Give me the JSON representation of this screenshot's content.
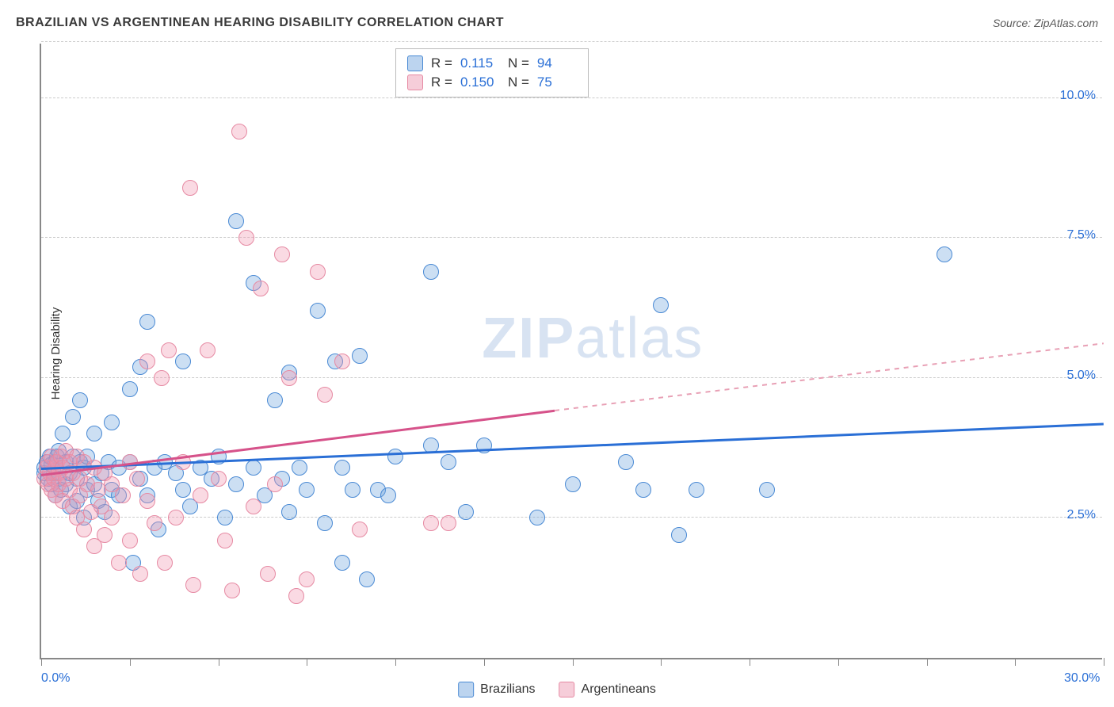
{
  "title": "BRAZILIAN VS ARGENTINEAN HEARING DISABILITY CORRELATION CHART",
  "source": "Source: ZipAtlas.com",
  "ylabel": "Hearing Disability",
  "watermark": {
    "bold": "ZIP",
    "light": "atlas"
  },
  "chart": {
    "type": "scatter",
    "xlim": [
      0,
      30
    ],
    "ylim": [
      0,
      11
    ],
    "x_ticks": [
      0,
      2.5,
      5,
      7.5,
      10,
      12.5,
      15,
      17.5,
      20,
      22.5,
      25,
      27.5,
      30
    ],
    "x_tick_labels": {
      "0": "0.0%",
      "30": "30.0%"
    },
    "y_gridlines": [
      2.5,
      5.0,
      7.5,
      10.0,
      11.0
    ],
    "y_tick_labels": {
      "2.5": "2.5%",
      "5.0": "5.0%",
      "7.5": "7.5%",
      "10.0": "10.0%"
    },
    "grid_color": "#cccccc",
    "axis_color": "#888888",
    "background_color": "#ffffff",
    "marker_radius": 10,
    "marker_border_width": 1.5,
    "marker_fill_opacity": 0.35,
    "series": [
      {
        "name": "Brazilians",
        "color_border": "#4a8ad4",
        "color_fill": "rgba(108,162,220,0.35)",
        "swatch_fill": "#bcd4ef",
        "swatch_border": "#4a8ad4",
        "R": "0.115",
        "N": "94",
        "trend": {
          "x1": 0,
          "y1": 3.35,
          "x2": 30,
          "y2": 4.15,
          "color": "#2a6fd6",
          "width": 3,
          "dash": false
        },
        "points": [
          [
            0.1,
            3.3
          ],
          [
            0.1,
            3.4
          ],
          [
            0.15,
            3.5
          ],
          [
            0.2,
            3.2
          ],
          [
            0.25,
            3.6
          ],
          [
            0.3,
            3.1
          ],
          [
            0.3,
            3.45
          ],
          [
            0.35,
            3.3
          ],
          [
            0.4,
            3.5
          ],
          [
            0.4,
            2.9
          ],
          [
            0.45,
            3.6
          ],
          [
            0.5,
            3.2
          ],
          [
            0.5,
            3.7
          ],
          [
            0.55,
            3.0
          ],
          [
            0.6,
            3.4
          ],
          [
            0.6,
            4.0
          ],
          [
            0.7,
            3.1
          ],
          [
            0.7,
            3.5
          ],
          [
            0.8,
            3.3
          ],
          [
            0.8,
            2.7
          ],
          [
            0.9,
            3.6
          ],
          [
            0.9,
            4.3
          ],
          [
            1.0,
            3.2
          ],
          [
            1.0,
            2.8
          ],
          [
            1.1,
            3.5
          ],
          [
            1.1,
            4.6
          ],
          [
            1.2,
            3.4
          ],
          [
            1.2,
            2.5
          ],
          [
            1.3,
            3.6
          ],
          [
            1.3,
            3.0
          ],
          [
            1.5,
            3.1
          ],
          [
            1.5,
            4.0
          ],
          [
            1.6,
            2.8
          ],
          [
            1.7,
            3.3
          ],
          [
            1.8,
            2.6
          ],
          [
            1.9,
            3.5
          ],
          [
            2.0,
            4.2
          ],
          [
            2.0,
            3.0
          ],
          [
            2.2,
            3.4
          ],
          [
            2.2,
            2.9
          ],
          [
            2.5,
            3.5
          ],
          [
            2.5,
            4.8
          ],
          [
            2.6,
            1.7
          ],
          [
            2.8,
            3.2
          ],
          [
            2.8,
            5.2
          ],
          [
            3.0,
            6.0
          ],
          [
            3.0,
            2.9
          ],
          [
            3.2,
            3.4
          ],
          [
            3.3,
            2.3
          ],
          [
            3.5,
            3.5
          ],
          [
            3.8,
            3.3
          ],
          [
            4.0,
            5.3
          ],
          [
            4.0,
            3.0
          ],
          [
            4.2,
            2.7
          ],
          [
            4.5,
            3.4
          ],
          [
            4.8,
            3.2
          ],
          [
            5.0,
            3.6
          ],
          [
            5.2,
            2.5
          ],
          [
            5.5,
            7.8
          ],
          [
            5.5,
            3.1
          ],
          [
            6.0,
            3.4
          ],
          [
            6.0,
            6.7
          ],
          [
            6.3,
            2.9
          ],
          [
            6.6,
            4.6
          ],
          [
            6.8,
            3.2
          ],
          [
            7.0,
            5.1
          ],
          [
            7.0,
            2.6
          ],
          [
            7.3,
            3.4
          ],
          [
            7.5,
            3.0
          ],
          [
            7.8,
            6.2
          ],
          [
            8.0,
            2.4
          ],
          [
            8.3,
            5.3
          ],
          [
            8.5,
            3.4
          ],
          [
            8.5,
            1.7
          ],
          [
            8.8,
            3.0
          ],
          [
            9.0,
            5.4
          ],
          [
            9.2,
            1.4
          ],
          [
            9.5,
            3.0
          ],
          [
            9.8,
            2.9
          ],
          [
            10.0,
            3.6
          ],
          [
            11.0,
            6.9
          ],
          [
            11.0,
            3.8
          ],
          [
            11.5,
            3.5
          ],
          [
            12.0,
            2.6
          ],
          [
            12.5,
            3.8
          ],
          [
            14.0,
            2.5
          ],
          [
            15.0,
            3.1
          ],
          [
            16.5,
            3.5
          ],
          [
            17.0,
            3.0
          ],
          [
            17.5,
            6.3
          ],
          [
            18.5,
            3.0
          ],
          [
            18.0,
            2.2
          ],
          [
            20.5,
            3.0
          ],
          [
            25.5,
            7.2
          ]
        ]
      },
      {
        "name": "Argentineans",
        "color_border": "#e68aa3",
        "color_fill": "rgba(240,150,175,0.35)",
        "swatch_fill": "#f6cdd9",
        "swatch_border": "#e68aa3",
        "R": "0.150",
        "N": "75",
        "trend_solid": {
          "x1": 0,
          "y1": 3.25,
          "x2": 14.5,
          "y2": 4.4,
          "color": "#d6528a",
          "width": 2.5
        },
        "trend_dash": {
          "x1": 14.5,
          "y1": 4.4,
          "x2": 30,
          "y2": 5.6,
          "color": "#e8a0b5",
          "width": 1.8
        },
        "points": [
          [
            0.1,
            3.2
          ],
          [
            0.15,
            3.4
          ],
          [
            0.2,
            3.1
          ],
          [
            0.2,
            3.5
          ],
          [
            0.25,
            3.3
          ],
          [
            0.3,
            3.0
          ],
          [
            0.3,
            3.6
          ],
          [
            0.35,
            3.2
          ],
          [
            0.4,
            3.4
          ],
          [
            0.4,
            2.9
          ],
          [
            0.45,
            3.5
          ],
          [
            0.5,
            3.1
          ],
          [
            0.5,
            3.3
          ],
          [
            0.55,
            3.6
          ],
          [
            0.6,
            2.8
          ],
          [
            0.6,
            3.4
          ],
          [
            0.7,
            3.2
          ],
          [
            0.7,
            3.7
          ],
          [
            0.8,
            3.0
          ],
          [
            0.8,
            3.5
          ],
          [
            0.9,
            2.7
          ],
          [
            0.9,
            3.3
          ],
          [
            1.0,
            3.6
          ],
          [
            1.0,
            2.5
          ],
          [
            1.1,
            3.2
          ],
          [
            1.1,
            2.9
          ],
          [
            1.2,
            3.5
          ],
          [
            1.2,
            2.3
          ],
          [
            1.3,
            3.1
          ],
          [
            1.4,
            2.6
          ],
          [
            1.5,
            3.4
          ],
          [
            1.5,
            2.0
          ],
          [
            1.6,
            3.0
          ],
          [
            1.7,
            2.7
          ],
          [
            1.8,
            3.3
          ],
          [
            1.8,
            2.2
          ],
          [
            2.0,
            3.1
          ],
          [
            2.0,
            2.5
          ],
          [
            2.2,
            1.7
          ],
          [
            2.3,
            2.9
          ],
          [
            2.5,
            3.5
          ],
          [
            2.5,
            2.1
          ],
          [
            2.7,
            3.2
          ],
          [
            2.8,
            1.5
          ],
          [
            3.0,
            5.3
          ],
          [
            3.0,
            2.8
          ],
          [
            3.2,
            2.4
          ],
          [
            3.4,
            5.0
          ],
          [
            3.5,
            1.7
          ],
          [
            3.6,
            5.5
          ],
          [
            3.8,
            2.5
          ],
          [
            4.0,
            3.5
          ],
          [
            4.2,
            8.4
          ],
          [
            4.3,
            1.3
          ],
          [
            4.5,
            2.9
          ],
          [
            4.7,
            5.5
          ],
          [
            5.0,
            3.2
          ],
          [
            5.2,
            2.1
          ],
          [
            5.4,
            1.2
          ],
          [
            5.6,
            9.4
          ],
          [
            5.8,
            7.5
          ],
          [
            6.0,
            2.7
          ],
          [
            6.2,
            6.6
          ],
          [
            6.4,
            1.5
          ],
          [
            6.6,
            3.1
          ],
          [
            6.8,
            7.2
          ],
          [
            7.0,
            5.0
          ],
          [
            7.2,
            1.1
          ],
          [
            7.5,
            1.4
          ],
          [
            7.8,
            6.9
          ],
          [
            8.0,
            4.7
          ],
          [
            8.5,
            5.3
          ],
          [
            9.0,
            2.3
          ],
          [
            11.0,
            2.4
          ],
          [
            11.5,
            2.4
          ]
        ]
      }
    ],
    "legend_bottom": [
      {
        "label": "Brazilians",
        "swatch_fill": "#bcd4ef",
        "swatch_border": "#4a8ad4"
      },
      {
        "label": "Argentineans",
        "swatch_fill": "#f6cdd9",
        "swatch_border": "#e68aa3"
      }
    ]
  }
}
